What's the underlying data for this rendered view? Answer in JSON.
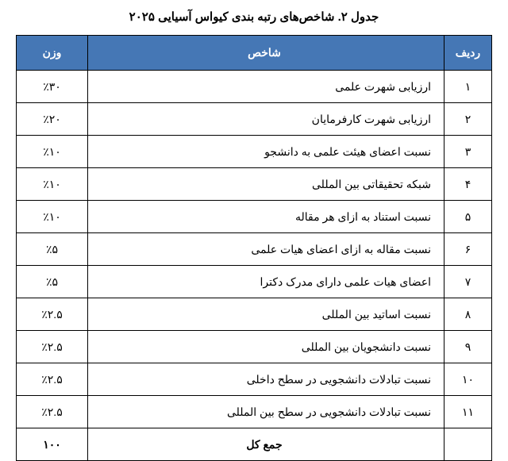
{
  "title": "جدول ۲. شاخص‌های رتبه بندی کیواس آسیایی ۲۰۲۵",
  "headers": {
    "rank": "ردیف",
    "indicator": "شاخص",
    "weight": "وزن"
  },
  "rows": [
    {
      "rank": "۱",
      "indicator": "ارزیابی شهرت علمی",
      "weight": "٪۳۰"
    },
    {
      "rank": "۲",
      "indicator": "ارزیابی شهرت کارفرمایان",
      "weight": "٪۲۰"
    },
    {
      "rank": "۳",
      "indicator": "نسبت اعضای هیئت علمی به دانشجو",
      "weight": "٪۱۰"
    },
    {
      "rank": "۴",
      "indicator": "شبکه تحقیقاتی بین المللی",
      "weight": "٪۱۰"
    },
    {
      "rank": "۵",
      "indicator": "نسبت استناد به ازای هر مقاله",
      "weight": "٪۱۰"
    },
    {
      "rank": "۶",
      "indicator": "نسبت مقاله به ازای اعضای هیات علمی",
      "weight": "٪۵"
    },
    {
      "rank": "۷",
      "indicator": "اعضای هیات علمی دارای مدرک دکترا",
      "weight": "٪۵"
    },
    {
      "rank": "۸",
      "indicator": "نسبت اساتید بین المللی",
      "weight": "٪۲.۵"
    },
    {
      "rank": "۹",
      "indicator": "نسبت دانشجویان بین المللی",
      "weight": "٪۲.۵"
    },
    {
      "rank": "۱۰",
      "indicator": "نسبت تبادلات دانشجویی در سطح داخلی",
      "weight": "٪۲.۵"
    },
    {
      "rank": "۱۱",
      "indicator": "نسبت تبادلات دانشجویی در سطح بین المللی",
      "weight": "٪۲.۵"
    }
  ],
  "total": {
    "rank": "",
    "indicator": "جمع کل",
    "weight": "۱۰۰"
  },
  "colors": {
    "header_bg": "#4577b5",
    "header_fg": "#ffffff",
    "border": "#000000",
    "text": "#000000",
    "background": "#ffffff"
  }
}
